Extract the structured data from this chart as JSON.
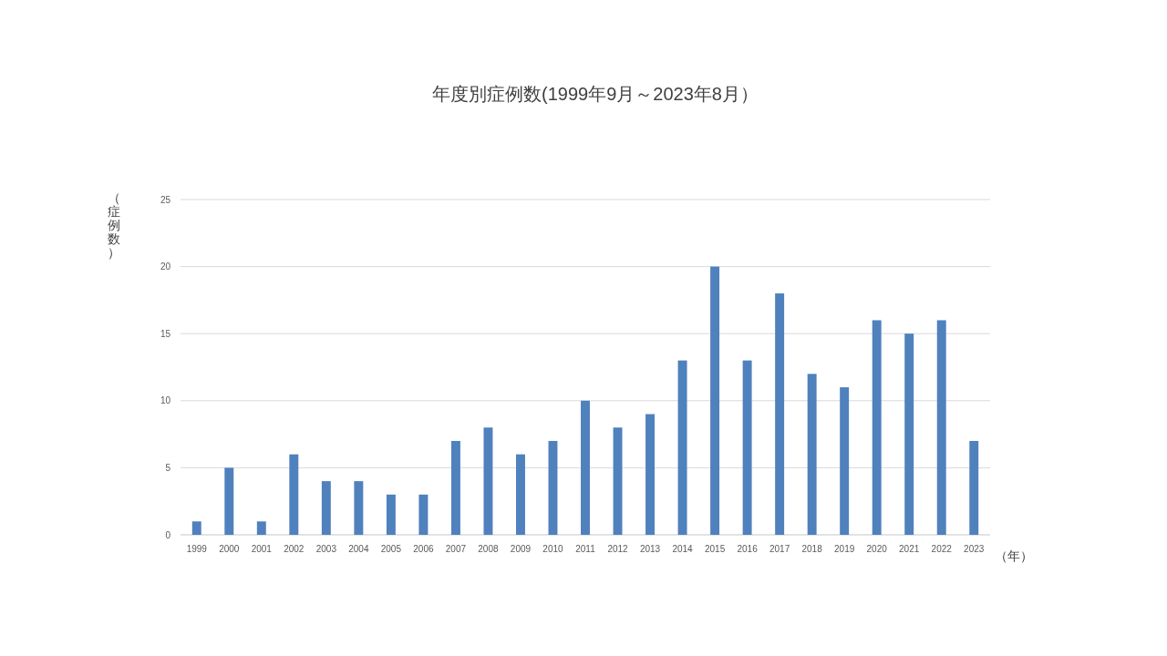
{
  "chart_data": {
    "type": "bar",
    "title": "年度別症例数(1999年9月～2023年8月）",
    "xlabel": "（年）",
    "ylabel": "（症例数）",
    "categories": [
      "1999",
      "2000",
      "2001",
      "2002",
      "2003",
      "2004",
      "2005",
      "2006",
      "2007",
      "2008",
      "2009",
      "2010",
      "2011",
      "2012",
      "2013",
      "2014",
      "2015",
      "2016",
      "2017",
      "2018",
      "2019",
      "2020",
      "2021",
      "2022",
      "2023"
    ],
    "values": [
      1,
      5,
      1,
      6,
      4,
      4,
      3,
      3,
      7,
      8,
      6,
      7,
      10,
      8,
      9,
      13,
      20,
      13,
      18,
      12,
      11,
      16,
      15,
      16,
      7
    ],
    "color": "#4f81bd",
    "ylim": [
      0,
      25
    ],
    "yticks": [
      0,
      5,
      10,
      15,
      20,
      25
    ],
    "grid": "y"
  }
}
